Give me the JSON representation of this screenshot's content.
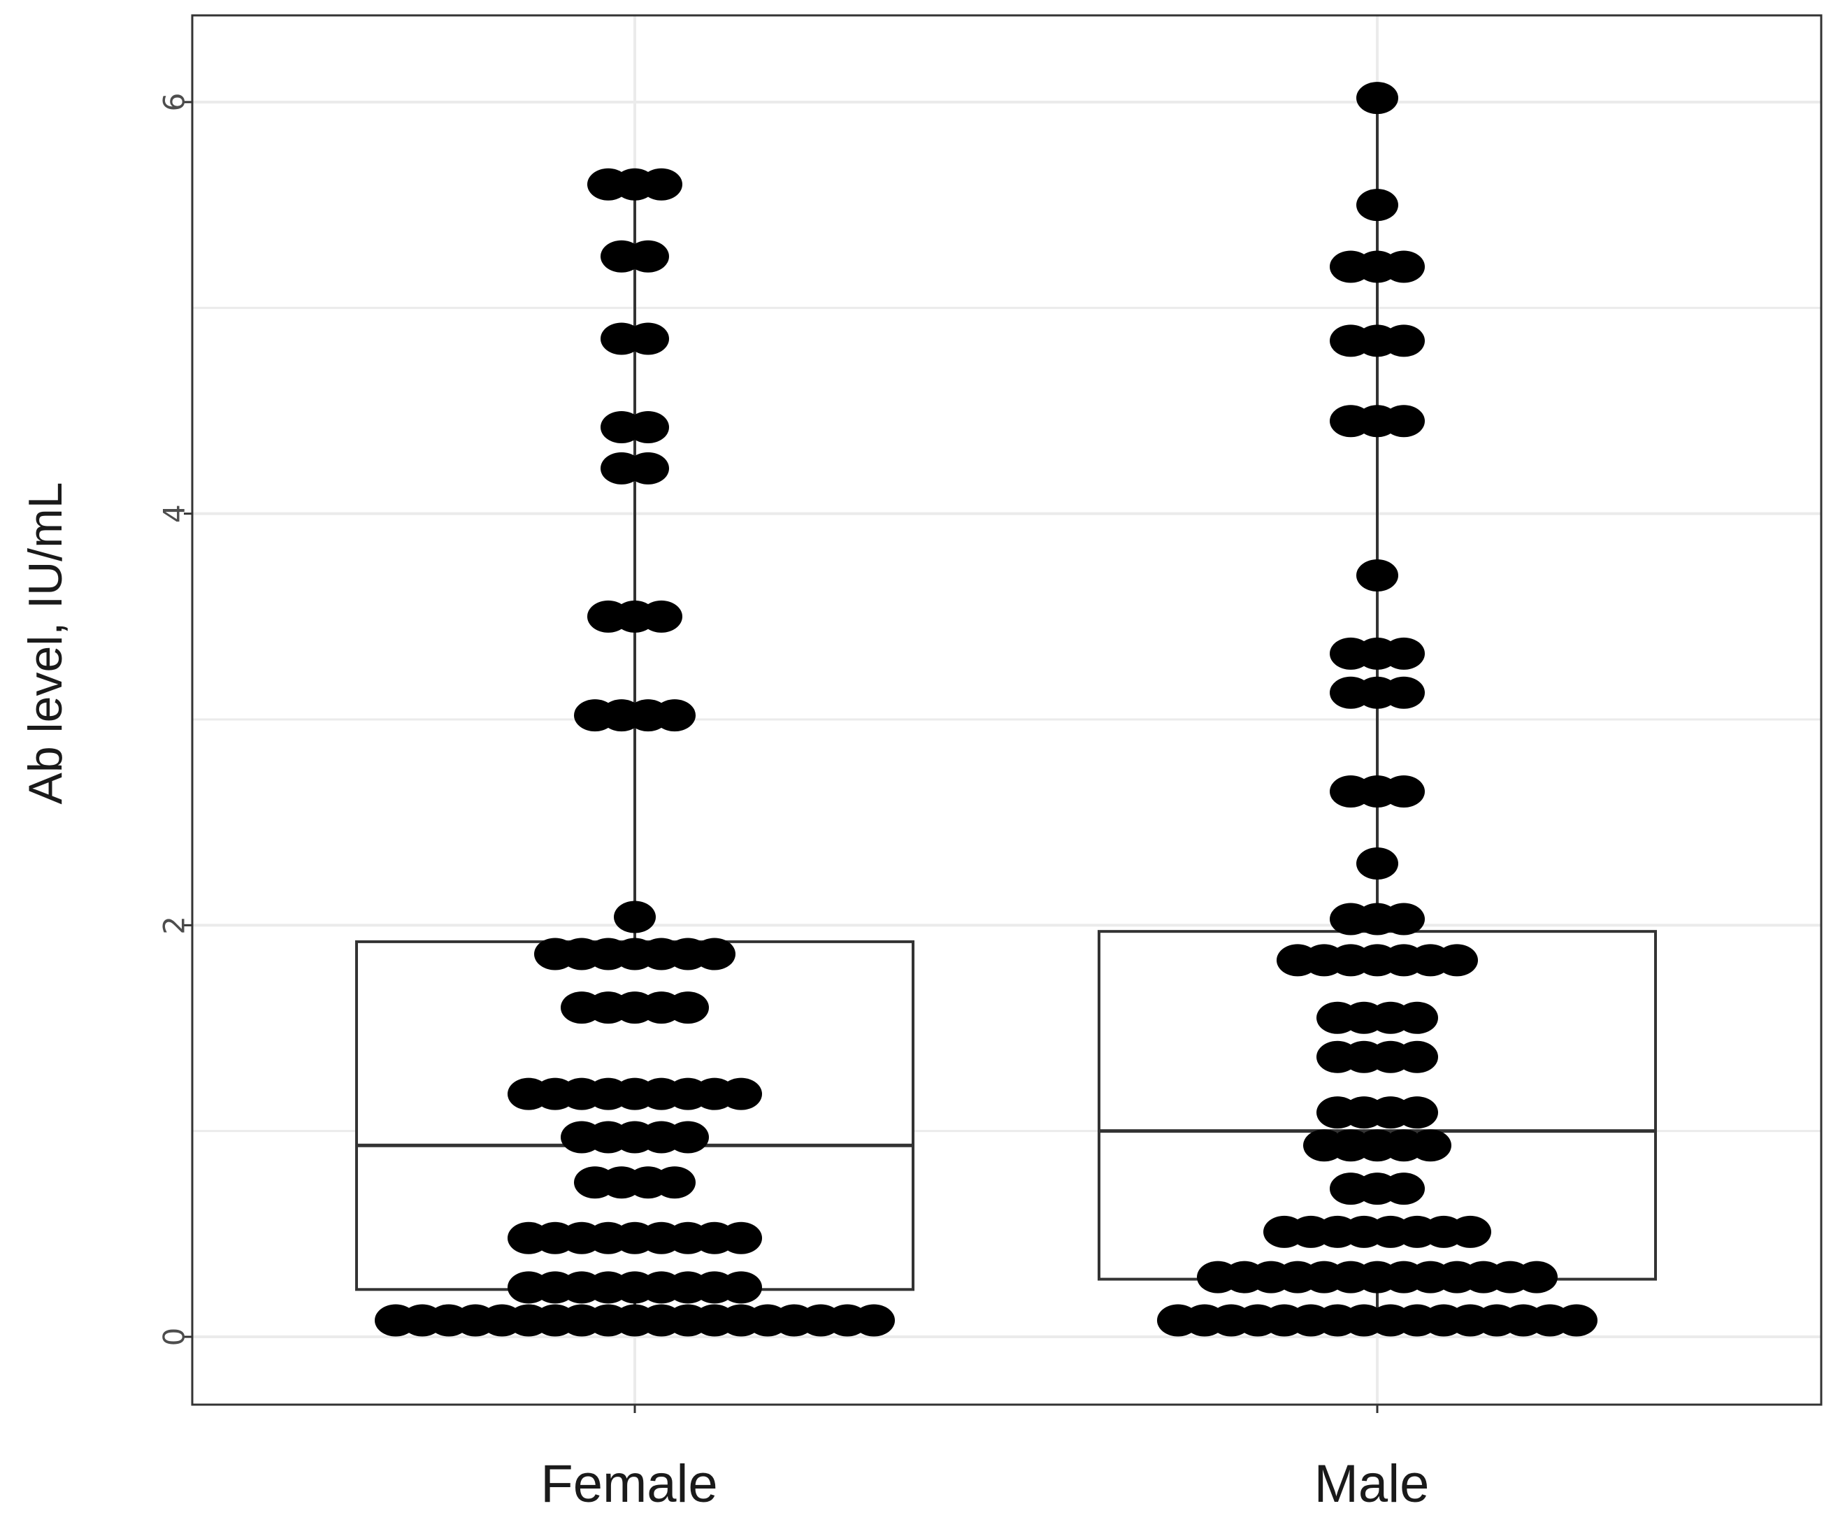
{
  "chart_data": {
    "type": "box-dotplot",
    "title": "",
    "xlabel": "",
    "ylabel": "Ab level, IU/mL",
    "ylim": [
      -0.2,
      6.3
    ],
    "yticks": [
      0,
      2,
      4,
      6
    ],
    "grid": true,
    "categories": [
      "Female",
      "Male"
    ],
    "boxes": [
      {
        "name": "Female",
        "q1": 0.23,
        "median": 0.93,
        "q3": 1.92,
        "whisker_low": 0.08,
        "whisker_high": 5.6
      },
      {
        "name": "Male",
        "q1": 0.28,
        "median": 1.0,
        "q3": 1.97,
        "whisker_low": 0.08,
        "whisker_high": 6.02
      }
    ],
    "dot_rows": [
      {
        "group": "Female",
        "rows": [
          {
            "y": 0.08,
            "count": 19
          },
          {
            "y": 0.24,
            "count": 9
          },
          {
            "y": 0.48,
            "count": 9
          },
          {
            "y": 0.75,
            "count": 4
          },
          {
            "y": 0.97,
            "count": 5
          },
          {
            "y": 1.18,
            "count": 9
          },
          {
            "y": 1.6,
            "count": 5
          },
          {
            "y": 1.86,
            "count": 7
          },
          {
            "y": 2.04,
            "count": 1
          },
          {
            "y": 3.02,
            "count": 4
          },
          {
            "y": 3.5,
            "count": 3
          },
          {
            "y": 4.22,
            "count": 2
          },
          {
            "y": 4.42,
            "count": 2
          },
          {
            "y": 4.85,
            "count": 2
          },
          {
            "y": 5.25,
            "count": 2
          },
          {
            "y": 5.6,
            "count": 3
          }
        ]
      },
      {
        "group": "Male",
        "rows": [
          {
            "y": 0.08,
            "count": 16
          },
          {
            "y": 0.29,
            "count": 13
          },
          {
            "y": 0.51,
            "count": 8
          },
          {
            "y": 0.72,
            "count": 3
          },
          {
            "y": 0.93,
            "count": 5
          },
          {
            "y": 1.09,
            "count": 4
          },
          {
            "y": 1.36,
            "count": 4
          },
          {
            "y": 1.55,
            "count": 4
          },
          {
            "y": 1.83,
            "count": 7
          },
          {
            "y": 2.03,
            "count": 3
          },
          {
            "y": 2.3,
            "count": 1
          },
          {
            "y": 2.65,
            "count": 3
          },
          {
            "y": 3.13,
            "count": 3
          },
          {
            "y": 3.32,
            "count": 3
          },
          {
            "y": 3.7,
            "count": 1
          },
          {
            "y": 4.45,
            "count": 3
          },
          {
            "y": 4.84,
            "count": 3
          },
          {
            "y": 5.2,
            "count": 3
          },
          {
            "y": 5.5,
            "count": 1
          },
          {
            "y": 6.02,
            "count": 1
          }
        ]
      }
    ]
  },
  "colors": {
    "dot": "#000000",
    "box_stroke": "#333333",
    "grid": "#ebebeb",
    "panel_border": "#333333"
  }
}
